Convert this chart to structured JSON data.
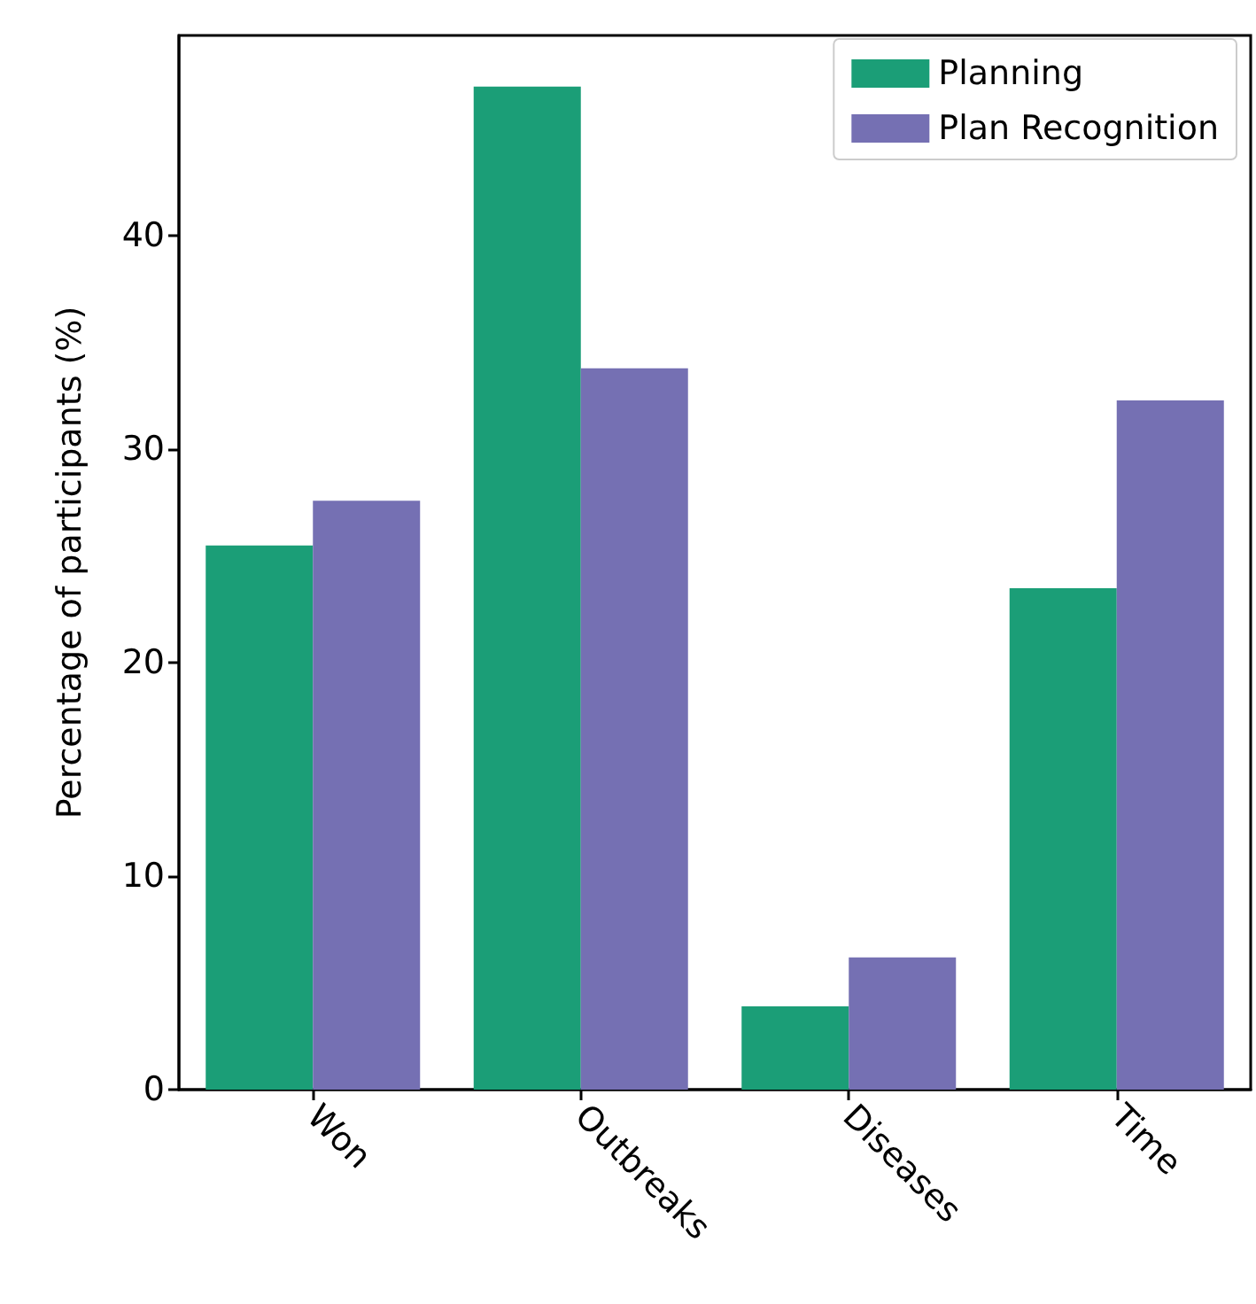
{
  "chart_data": {
    "type": "bar",
    "ylabel": "Percentage of participants (%)",
    "categories": [
      "Won",
      "Outbreaks",
      "Diseases",
      "Time"
    ],
    "series": [
      {
        "name": "Planning",
        "color": "#1b9e77",
        "values": [
          25.5,
          47.0,
          3.9,
          23.5
        ]
      },
      {
        "name": "Plan Recognition",
        "color": "#7570b3",
        "values": [
          27.6,
          33.8,
          6.2,
          32.3
        ]
      }
    ],
    "ylim": [
      0,
      49.4
    ],
    "yticks": [
      0,
      10,
      20,
      30,
      40
    ],
    "grid": false,
    "legend": "top right"
  }
}
